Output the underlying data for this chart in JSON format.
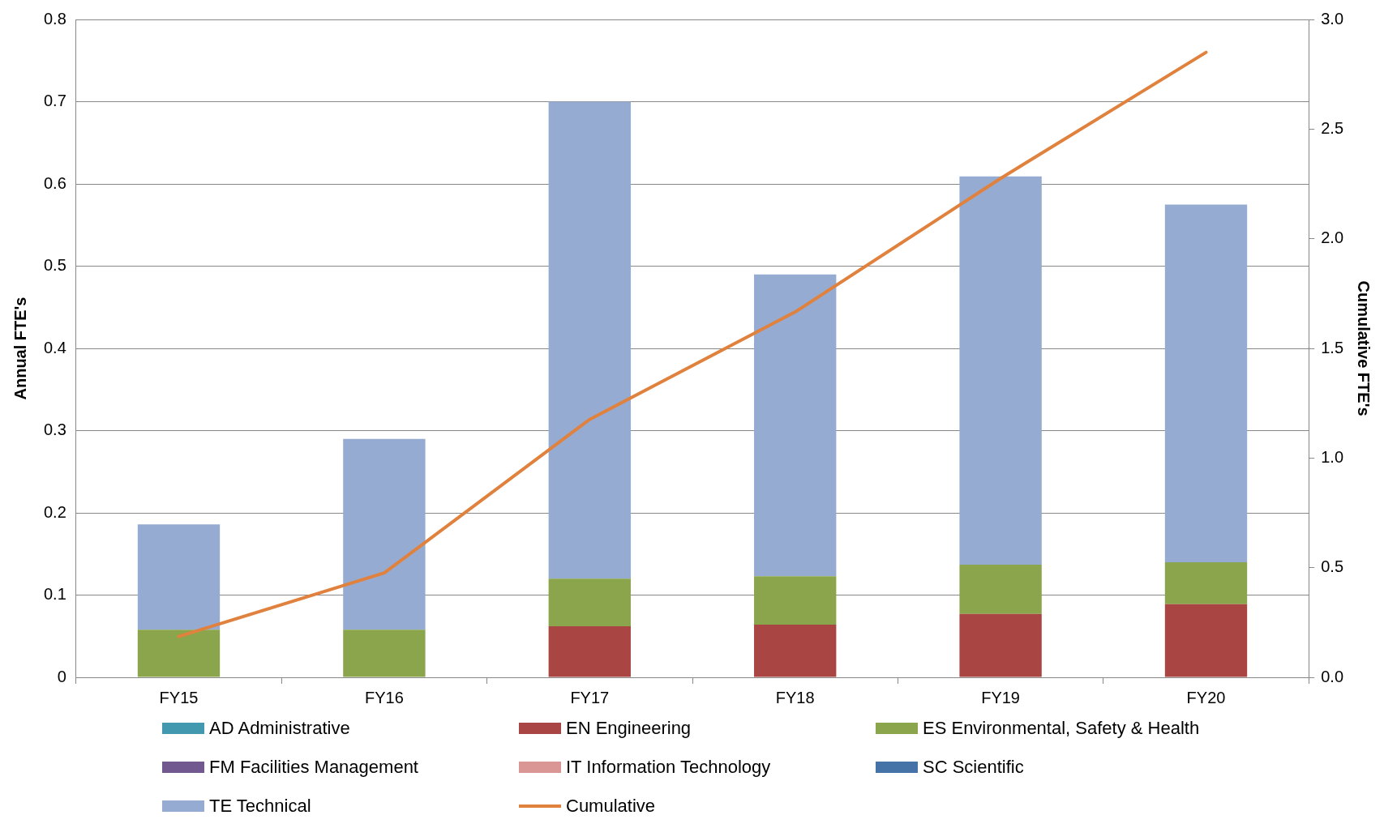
{
  "chart_data": {
    "type": "bar",
    "stacked": true,
    "ylabel": "Annual FTE's",
    "y2label": "Cumulative FTE's",
    "categories": [
      "FY15",
      "FY16",
      "FY17",
      "FY18",
      "FY19",
      "FY20"
    ],
    "series": [
      {
        "name": "AD Administrative",
        "color": "#4198af",
        "values": [
          0,
          0,
          0,
          0,
          0,
          0
        ]
      },
      {
        "name": "EN Engineering",
        "color": "#a94643",
        "values": [
          0,
          0,
          0.062,
          0.064,
          0.077,
          0.089
        ]
      },
      {
        "name": "ES Environmental, Safety & Health",
        "color": "#8aa54b",
        "values": [
          0.058,
          0.058,
          0.058,
          0.059,
          0.06,
          0.051
        ]
      },
      {
        "name": "FM Facilities Management",
        "color": "#71588f",
        "values": [
          0,
          0,
          0,
          0,
          0,
          0
        ]
      },
      {
        "name": "IT Information Technology",
        "color": "#d99694",
        "values": [
          0,
          0,
          0,
          0,
          0,
          0
        ]
      },
      {
        "name": "SC Scientific",
        "color": "#4573a7",
        "values": [
          0,
          0,
          0,
          0,
          0,
          0
        ]
      },
      {
        "name": "TE Technical",
        "color": "#95abd2",
        "values": [
          0.128,
          0.232,
          0.58,
          0.367,
          0.472,
          0.435
        ]
      },
      {
        "name": "Cumulative",
        "type": "line",
        "axis": "y2",
        "color": "#e0823d",
        "values": [
          0.186,
          0.476,
          1.176,
          1.666,
          2.275,
          2.85
        ]
      }
    ],
    "ylim": [
      0,
      0.8
    ],
    "yticks": [
      {
        "value": 0,
        "label": "0"
      },
      0.1,
      0.2,
      0.3,
      0.4,
      0.5,
      0.6,
      0.7,
      0.8
    ],
    "y2lim": [
      0,
      3
    ],
    "y2ticks": [
      {
        "value": 0,
        "label": "0.0"
      },
      0.5,
      {
        "value": 1,
        "label": "1.0"
      },
      1.5,
      {
        "value": 2,
        "label": "2.0"
      },
      2.5,
      {
        "value": 3,
        "label": "3.0"
      }
    ],
    "grid": "y",
    "legend": "bottom",
    "marker": "none",
    "line_style": "solid"
  }
}
